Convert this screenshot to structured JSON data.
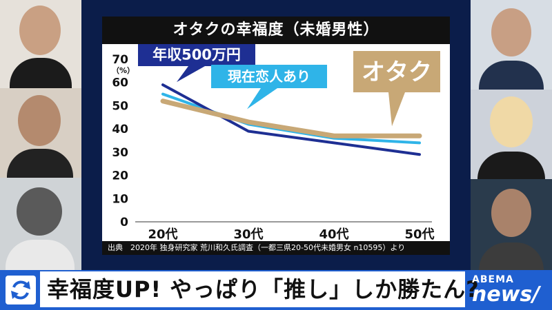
{
  "title": "オタクの幸福度（未婚男性）",
  "source": "出典　2020年 独身研究家 荒川和久氏調査（一都三県20-50代未婚男女 n10595）より",
  "headline": "幸福度UP! やっぱり「推し」しか勝たん?",
  "logo": {
    "line1": "ABEMA",
    "line2": "news/"
  },
  "icons": [
    "sync-icon"
  ],
  "colors": {
    "navy": "#1e2f93",
    "lightblue": "#2fb4e8",
    "tan": "#c8a876",
    "band": "#1f5fd0"
  },
  "chart_data": {
    "type": "line",
    "title": "オタクの幸福度（未婚男性）",
    "categories": [
      "20代",
      "30代",
      "40代",
      "50代"
    ],
    "yunit": "（%）",
    "ylim": [
      0,
      70
    ],
    "yticks": [
      0,
      10,
      20,
      30,
      40,
      50,
      60,
      70
    ],
    "series": [
      {
        "name": "年収500万円",
        "values": [
          59,
          39,
          34,
          29
        ],
        "color": "#1e2f93"
      },
      {
        "name": "現在恋人あり",
        "values": [
          55,
          42,
          36,
          34
        ],
        "color": "#2fb4e8"
      },
      {
        "name": "オタク",
        "values": [
          52,
          43,
          37,
          37
        ],
        "color": "#c8a876"
      }
    ]
  }
}
